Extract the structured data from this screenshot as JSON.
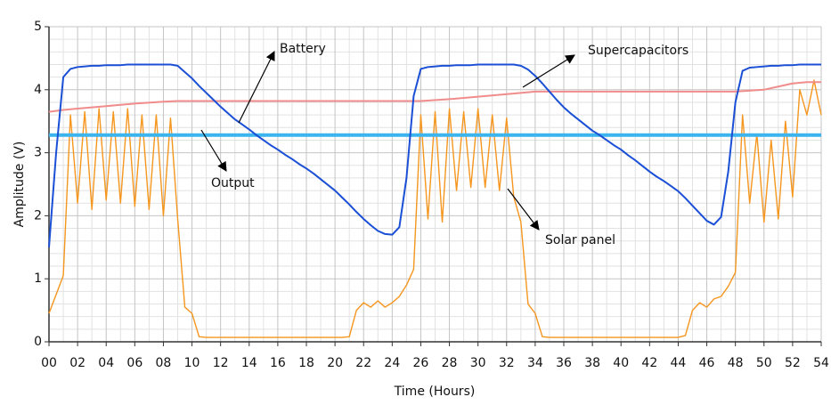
{
  "chart_data": {
    "type": "line",
    "xlabel": "Time (Hours)",
    "ylabel": "Amplitude (V)",
    "x": [
      0,
      0.5,
      1,
      1.5,
      2,
      2.5,
      3,
      3.5,
      4,
      4.5,
      5,
      5.5,
      6,
      6.5,
      7,
      7.5,
      8,
      8.5,
      9,
      9.5,
      10,
      10.5,
      11,
      11.5,
      12,
      12.5,
      13,
      13.5,
      14,
      14.5,
      15,
      15.5,
      16,
      16.5,
      17,
      17.5,
      18,
      18.5,
      19,
      19.5,
      20,
      20.5,
      21,
      21.5,
      22,
      22.5,
      23,
      23.5,
      24,
      24.5,
      25,
      25.5,
      26,
      26.5,
      27,
      27.5,
      28,
      28.5,
      29,
      29.5,
      30,
      30.5,
      31,
      31.5,
      32,
      32.5,
      33,
      33.5,
      34,
      34.5,
      35,
      35.5,
      36,
      36.5,
      37,
      37.5,
      38,
      38.5,
      39,
      39.5,
      40,
      40.5,
      41,
      41.5,
      42,
      42.5,
      43,
      43.5,
      44,
      44.5,
      45,
      45.5,
      46,
      46.5,
      47,
      47.5,
      48,
      48.5,
      49,
      49.5,
      50,
      50.5,
      51,
      51.5,
      52,
      52.5,
      53,
      53.5,
      54
    ],
    "series": [
      {
        "name": "Solar panel",
        "color": "#f5961e",
        "values": [
          0.45,
          0.75,
          1.05,
          3.6,
          2.2,
          3.65,
          2.1,
          3.7,
          2.25,
          3.65,
          2.2,
          3.7,
          2.15,
          3.6,
          2.1,
          3.6,
          2.0,
          3.55,
          1.95,
          0.55,
          0.45,
          0.08,
          0.07,
          0.07,
          0.07,
          0.07,
          0.07,
          0.07,
          0.07,
          0.07,
          0.07,
          0.07,
          0.07,
          0.07,
          0.07,
          0.07,
          0.07,
          0.07,
          0.07,
          0.07,
          0.07,
          0.07,
          0.08,
          0.5,
          0.62,
          0.55,
          0.65,
          0.55,
          0.62,
          0.72,
          0.9,
          1.15,
          3.6,
          1.95,
          3.65,
          1.9,
          3.7,
          2.4,
          3.65,
          2.45,
          3.7,
          2.45,
          3.6,
          2.4,
          3.55,
          2.3,
          1.9,
          0.6,
          0.45,
          0.08,
          0.07,
          0.07,
          0.07,
          0.07,
          0.07,
          0.07,
          0.07,
          0.07,
          0.07,
          0.07,
          0.07,
          0.07,
          0.07,
          0.07,
          0.07,
          0.07,
          0.07,
          0.07,
          0.07,
          0.1,
          0.5,
          0.62,
          0.55,
          0.68,
          0.72,
          0.88,
          1.1,
          3.6,
          2.2,
          3.3,
          1.9,
          3.2,
          1.95,
          3.5,
          2.3,
          4.0,
          3.6,
          4.15,
          3.6
        ]
      },
      {
        "name": "Output",
        "color": "#3cb4ee",
        "x": [
          0,
          54
        ],
        "values": [
          3.28,
          3.28
        ]
      },
      {
        "name": "Supercapacitors",
        "color": "#f08c8c",
        "x": [
          0,
          1,
          2,
          4,
          6,
          8,
          9,
          26,
          28,
          30,
          33,
          34,
          48,
          50,
          51,
          52,
          53,
          54
        ],
        "values": [
          3.65,
          3.68,
          3.7,
          3.74,
          3.78,
          3.81,
          3.82,
          3.82,
          3.85,
          3.89,
          3.95,
          3.97,
          3.97,
          4.0,
          4.05,
          4.1,
          4.12,
          4.12
        ]
      },
      {
        "name": "Battery",
        "color": "#1a4fd6",
        "values": [
          1.5,
          3.0,
          4.2,
          4.33,
          4.36,
          4.37,
          4.38,
          4.38,
          4.39,
          4.39,
          4.39,
          4.4,
          4.4,
          4.4,
          4.4,
          4.4,
          4.4,
          4.4,
          4.38,
          4.28,
          4.18,
          4.06,
          3.95,
          3.84,
          3.73,
          3.63,
          3.53,
          3.45,
          3.37,
          3.28,
          3.2,
          3.12,
          3.05,
          2.97,
          2.9,
          2.82,
          2.75,
          2.67,
          2.58,
          2.49,
          2.4,
          2.29,
          2.18,
          2.06,
          1.95,
          1.85,
          1.76,
          1.71,
          1.7,
          1.82,
          2.6,
          3.9,
          4.33,
          4.36,
          4.37,
          4.38,
          4.38,
          4.39,
          4.39,
          4.39,
          4.4,
          4.4,
          4.4,
          4.4,
          4.4,
          4.4,
          4.38,
          4.32,
          4.22,
          4.1,
          3.97,
          3.84,
          3.72,
          3.62,
          3.53,
          3.44,
          3.35,
          3.28,
          3.2,
          3.12,
          3.05,
          2.96,
          2.88,
          2.79,
          2.7,
          2.62,
          2.55,
          2.47,
          2.39,
          2.28,
          2.16,
          2.04,
          1.92,
          1.86,
          1.98,
          2.7,
          3.8,
          4.3,
          4.35,
          4.36,
          4.37,
          4.38,
          4.38,
          4.39,
          4.39,
          4.4,
          4.4,
          4.4,
          4.4
        ]
      }
    ],
    "xlim": [
      0,
      54
    ],
    "xticks": [
      {
        "value": 0,
        "label": "00"
      },
      {
        "value": 2,
        "label": "02"
      },
      {
        "value": 4,
        "label": "04"
      },
      {
        "value": 6,
        "label": "06"
      },
      {
        "value": 8,
        "label": "08"
      },
      10,
      12,
      14,
      16,
      18,
      20,
      22,
      24,
      26,
      28,
      30,
      32,
      34,
      36,
      38,
      40,
      42,
      44,
      46,
      48,
      50,
      52,
      54
    ],
    "ylim": [
      0,
      5
    ],
    "yticks": [
      0,
      1,
      2,
      3,
      4,
      5
    ],
    "grid": true
  }
}
